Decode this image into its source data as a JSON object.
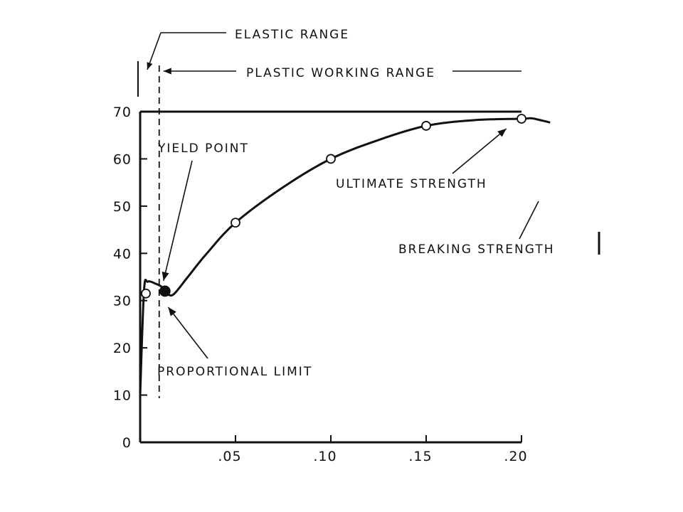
{
  "chart_data": {
    "type": "line",
    "title": "",
    "xlabel": "",
    "ylabel": "",
    "xlim": [
      0,
      0.2
    ],
    "ylim": [
      0,
      70
    ],
    "x_ticks": [
      {
        "value": 0.05,
        "label": ".05"
      },
      {
        "value": 0.1,
        "label": ".10"
      },
      {
        "value": 0.15,
        "label": ".15"
      },
      {
        "value": 0.2,
        "label": ".20"
      }
    ],
    "y_ticks": [
      {
        "value": 0,
        "label": "0"
      },
      {
        "value": 10,
        "label": "10"
      },
      {
        "value": 20,
        "label": "20"
      },
      {
        "value": 30,
        "label": "30"
      },
      {
        "value": 40,
        "label": "40"
      },
      {
        "value": 50,
        "label": "50"
      },
      {
        "value": 60,
        "label": "60"
      },
      {
        "value": 70,
        "label": "70"
      }
    ],
    "grid": false,
    "series": [
      {
        "curve": [
          [
            0,
            10
          ],
          [
            0.002,
            32
          ],
          [
            0.004,
            34
          ],
          [
            0.008,
            33.6
          ],
          [
            0.011,
            33
          ],
          [
            0.013,
            32
          ],
          [
            0.015,
            31.2
          ],
          [
            0.018,
            31.5
          ],
          [
            0.025,
            35
          ],
          [
            0.035,
            40
          ],
          [
            0.05,
            46.5
          ],
          [
            0.075,
            54
          ],
          [
            0.1,
            60
          ],
          [
            0.125,
            64
          ],
          [
            0.15,
            67
          ],
          [
            0.175,
            68.2
          ],
          [
            0.2,
            68.5
          ],
          [
            0.205,
            68.6
          ],
          [
            0.21,
            68.2
          ],
          [
            0.215,
            67.7
          ]
        ],
        "markers": [
          {
            "x": 0.003,
            "y": 31.5,
            "filled": false
          },
          {
            "x": 0.013,
            "y": 32,
            "filled": true
          },
          {
            "x": 0.05,
            "y": 46.5,
            "filled": false
          },
          {
            "x": 0.1,
            "y": 60,
            "filled": false
          },
          {
            "x": 0.15,
            "y": 67,
            "filled": false
          },
          {
            "x": 0.2,
            "y": 68.5,
            "filled": false
          }
        ]
      }
    ],
    "annotations": {
      "elastic_range": "ELASTIC RANGE",
      "plastic_working_range": "PLASTIC WORKING RANGE",
      "yield_point": "YIELD POINT",
      "ultimate_strength": "ULTIMATE STRENGTH",
      "breaking_strength": "BREAKING STRENGTH",
      "proportional_limit": "PROPORTIONAL LIMIT"
    },
    "annotation_targets": {
      "yield_point": {
        "x": 0.013,
        "y": 33
      },
      "ultimate_strength": {
        "x": 0.198,
        "y": 68.5
      },
      "proportional_limit": {
        "x": 0.008,
        "y": 29.5
      },
      "elastic_range": {
        "x": 0.003,
        "y": 0
      },
      "plastic_working_range": {
        "x": 0.007,
        "y": 0
      }
    },
    "range_marks": {
      "elastic_end_x": 0.007
    }
  }
}
